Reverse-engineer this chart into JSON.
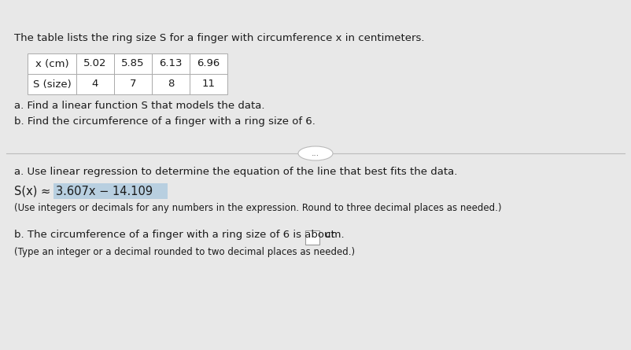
{
  "bg_top": "#c5d8e8",
  "bg_main": "#e8e8e8",
  "title_text": "The table lists the ring size S for a finger with circumference x in centimeters.",
  "table_headers": [
    "x (cm)",
    "5.02",
    "5.85",
    "6.13",
    "6.96"
  ],
  "table_row2": [
    "S (size)",
    "4",
    "7",
    "8",
    "11"
  ],
  "question_a": "a. Find a linear function S that models the data.",
  "question_b": "b. Find the circumference of a finger with a ring size of 6.",
  "divider_button_text": "...",
  "answer_a_label": "a. Use linear regression to determine the equation of the line that best fits the data.",
  "answer_a_eq_prefix": "S(x) ≈",
  "answer_a_eq_value": "3.607x − 14.109",
  "answer_a_note": "(Use integers or decimals for any numbers in the expression. Round to three decimal places as needed.)",
  "answer_b_text1": "b. The circumference of a finger with a ring size of 6 is about ",
  "answer_b_text2": " cm.",
  "answer_b_note": "(Type an integer or a decimal rounded to two decimal places as needed.)",
  "font_size_title": 9.5,
  "font_size_table": 9.5,
  "font_size_question": 9.5,
  "font_size_answer": 9.5,
  "font_size_eq": 10.5,
  "font_size_note": 8.5,
  "table_border_color": "#aaaaaa",
  "highlight_color": "#b8cfe0",
  "text_color": "#1a1a1a",
  "divider_color": "#bbbbbb"
}
